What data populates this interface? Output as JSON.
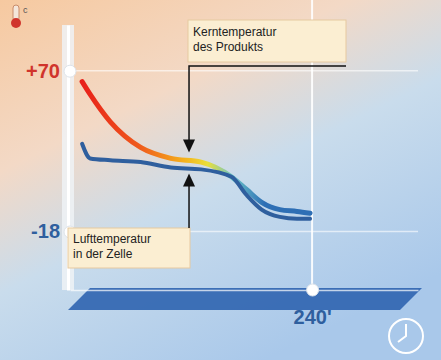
{
  "chart_data": {
    "type": "line",
    "ylabel": "c",
    "x": [
      12,
      20,
      40,
      70,
      100,
      130,
      160,
      175,
      190,
      208,
      225,
      238
    ],
    "series": [
      {
        "name": "Kerntemperatur des Produkts",
        "color": "#2e6fb5",
        "values": [
          64,
          57,
          42,
          28,
          22,
          20,
          12,
          5,
          -2,
          -6,
          -7,
          -8
        ]
      },
      {
        "name": "Lufttemperatur in der Zelle",
        "color": "#2f5f9e",
        "values": [
          30,
          22,
          21,
          20,
          17,
          16,
          12,
          2,
          -6,
          -10,
          -11,
          -11
        ]
      }
    ],
    "xlim": [
      0,
      345
    ],
    "xticks": [
      {
        "value": 240,
        "label": "240'"
      }
    ],
    "ylim": [
      -50,
      95
    ],
    "yticks": [
      {
        "value": 70,
        "label": "+70"
      },
      -18
    ],
    "grid": true
  }
}
